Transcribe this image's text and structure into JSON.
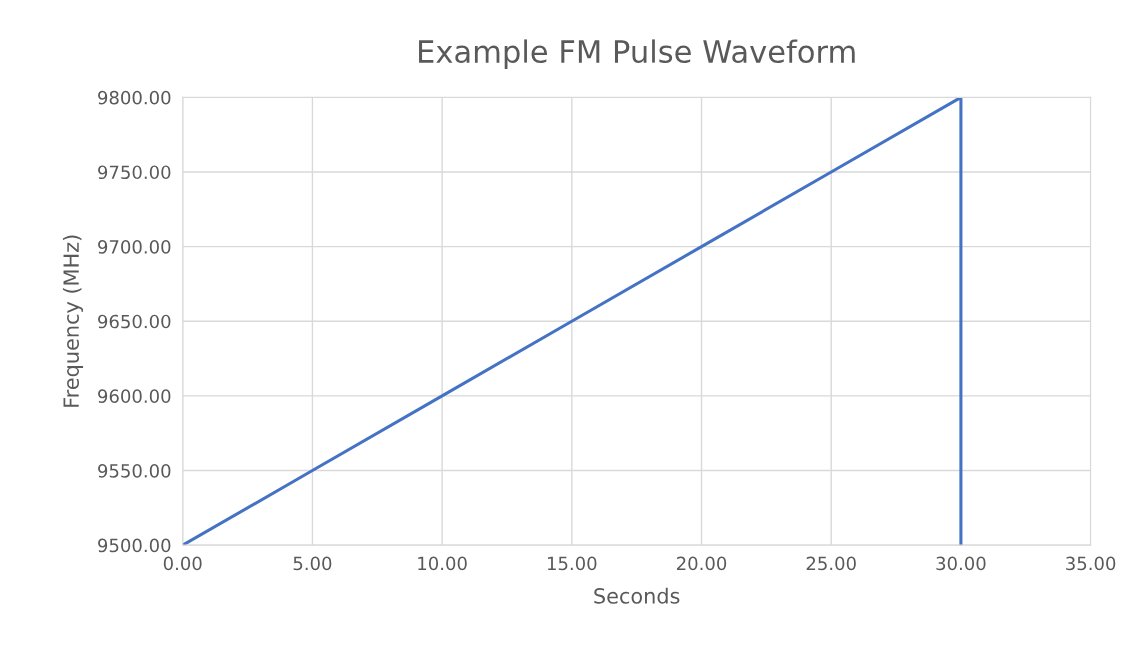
{
  "chart_data": {
    "type": "line",
    "title": "Example FM Pulse Waveform",
    "xlabel": "Seconds",
    "ylabel": "Frequency (MHz)",
    "x": [
      0,
      5,
      10,
      15,
      20,
      25,
      30,
      30
    ],
    "series": [
      {
        "color": "#4472c4",
        "values": [
          9500,
          9550,
          9600,
          9650,
          9700,
          9750,
          9800,
          9500
        ]
      }
    ],
    "xlim": [
      0,
      35
    ],
    "xticks": [
      {
        "value": 0,
        "label": "0.00"
      },
      {
        "value": 5,
        "label": "5.00"
      },
      {
        "value": 10,
        "label": "10.00"
      },
      {
        "value": 15,
        "label": "15.00"
      },
      {
        "value": 20,
        "label": "20.00"
      },
      {
        "value": 25,
        "label": "25.00"
      },
      {
        "value": 30,
        "label": "30.00"
      },
      {
        "value": 35,
        "label": "35.00"
      }
    ],
    "ylim": [
      9500,
      9800
    ],
    "yticks": [
      {
        "value": 9500,
        "label": "9500.00"
      },
      {
        "value": 9550,
        "label": "9550.00"
      },
      {
        "value": 9600,
        "label": "9600.00"
      },
      {
        "value": 9650,
        "label": "9650.00"
      },
      {
        "value": 9700,
        "label": "9700.00"
      },
      {
        "value": 9750,
        "label": "9750.00"
      },
      {
        "value": 9800,
        "label": "9800.00"
      }
    ],
    "grid": true,
    "marker": "none",
    "line_style": "solid"
  }
}
